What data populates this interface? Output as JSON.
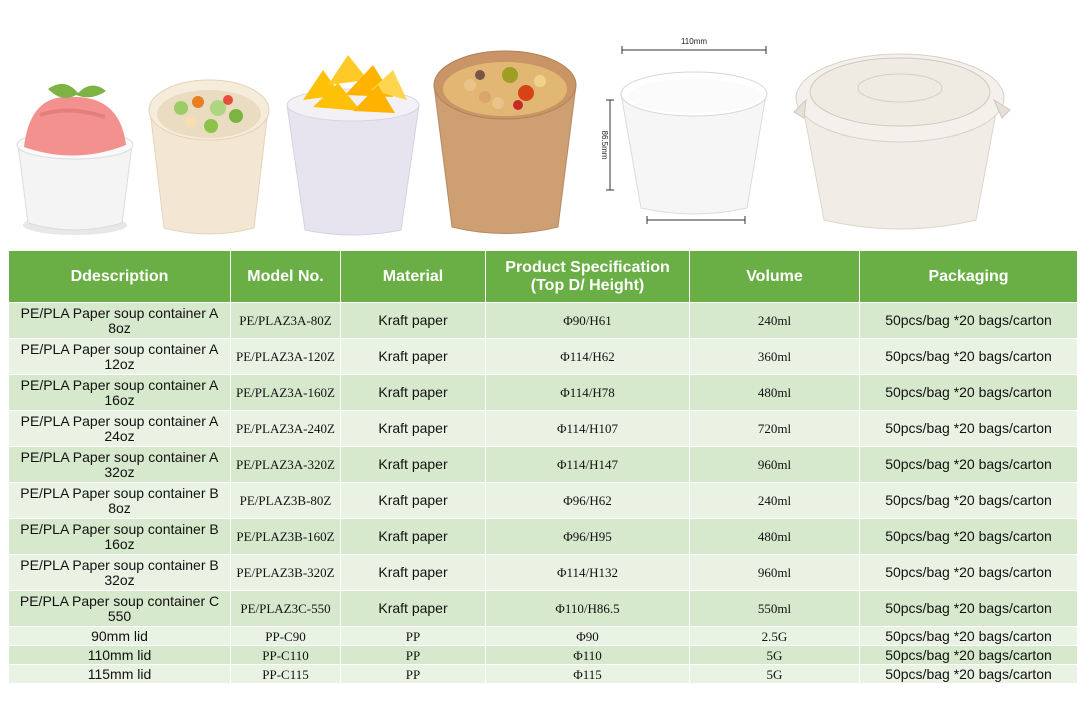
{
  "dimensions": {
    "width_label": "110mm",
    "height_label": "86.5mm"
  },
  "table": {
    "headers": [
      "Ddescription",
      "Model No.",
      "Material",
      "Product Specification\n(Top D/ Height)",
      "Volume",
      "Packaging"
    ],
    "header_spec_line1": "Product Specification",
    "header_spec_line2": "(Top D/ Height)",
    "rows": [
      {
        "description": "PE/PLA Paper soup container A 8oz",
        "model": "PE/PLAZ3A-80Z",
        "material": "Kraft paper",
        "spec": "Φ90/H61",
        "volume": "240ml",
        "packaging": "50pcs/bag *20 bags/carton"
      },
      {
        "description": "PE/PLA Paper soup container A 12oz",
        "model": "PE/PLAZ3A-120Z",
        "material": "Kraft paper",
        "spec": "Φ114/H62",
        "volume": "360ml",
        "packaging": "50pcs/bag *20 bags/carton"
      },
      {
        "description": "PE/PLA Paper soup container A 16oz",
        "model": "PE/PLAZ3A-160Z",
        "material": "Kraft paper",
        "spec": "Φ114/H78",
        "volume": "480ml",
        "packaging": "50pcs/bag *20 bags/carton"
      },
      {
        "description": "PE/PLA Paper soup container A 24oz",
        "model": "PE/PLAZ3A-240Z",
        "material": "Kraft paper",
        "spec": "Φ114/H107",
        "volume": "720ml",
        "packaging": "50pcs/bag *20 bags/carton"
      },
      {
        "description": "PE/PLA Paper soup container A 32oz",
        "model": "PE/PLAZ3A-320Z",
        "material": "Kraft paper",
        "spec": "Φ114/H147",
        "volume": "960ml",
        "packaging": "50pcs/bag *20 bags/carton"
      },
      {
        "description": "PE/PLA Paper soup container B 8oz",
        "model": "PE/PLAZ3B-80Z",
        "material": "Kraft paper",
        "spec": "Φ96/H62",
        "volume": "240ml",
        "packaging": "50pcs/bag *20 bags/carton"
      },
      {
        "description": "PE/PLA Paper soup container B 16oz",
        "model": "PE/PLAZ3B-160Z",
        "material": "Kraft paper",
        "spec": "Φ96/H95",
        "volume": "480ml",
        "packaging": "50pcs/bag *20 bags/carton"
      },
      {
        "description": "PE/PLA Paper soup container B 32oz",
        "model": "PE/PLAZ3B-320Z",
        "material": "Kraft paper",
        "spec": "Φ114/H132",
        "volume": "960ml",
        "packaging": "50pcs/bag *20 bags/carton"
      },
      {
        "description": "PE/PLA Paper soup container C 550",
        "model": "PE/PLAZ3C-550",
        "material": "Kraft paper",
        "spec": "Φ110/H86.5",
        "volume": "550ml",
        "packaging": "50pcs/bag *20 bags/carton"
      },
      {
        "description": "90mm lid",
        "model": "PP-C90",
        "material": "PP",
        "spec": "Φ90",
        "volume": "2.5G",
        "packaging": "50pcs/bag *20 bags/carton"
      },
      {
        "description": "110mm lid",
        "model": "PP-C110",
        "material": "PP",
        "spec": "Φ110",
        "volume": "5G",
        "packaging": "50pcs/bag *20 bags/carton"
      },
      {
        "description": "115mm lid",
        "model": "PP-C115",
        "material": "PP",
        "spec": "Φ115",
        "volume": "5G",
        "packaging": "50pcs/bag *20 bags/carton"
      }
    ]
  },
  "colors": {
    "header_bg": "#6aaf45",
    "row_dark": "#d7e9cc",
    "row_light": "#eaf3e3"
  }
}
